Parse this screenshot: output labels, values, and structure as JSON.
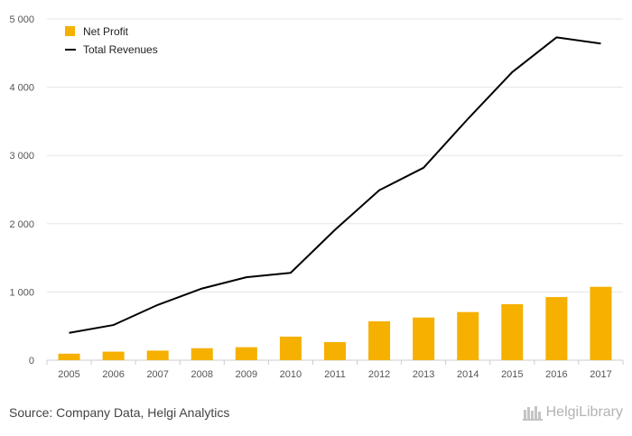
{
  "chart_data": {
    "type": "bar",
    "categories": [
      "2005",
      "2006",
      "2007",
      "2008",
      "2009",
      "2010",
      "2011",
      "2012",
      "2013",
      "2014",
      "2015",
      "2016",
      "2017"
    ],
    "series": [
      {
        "name": "Net Profit",
        "type": "bar",
        "color": "#f5b000",
        "values": [
          95,
          125,
          140,
          175,
          190,
          345,
          265,
          570,
          625,
          705,
          820,
          925,
          1075
        ]
      },
      {
        "name": "Total Revenues",
        "type": "line",
        "color": "#000000",
        "values": [
          400,
          515,
          810,
          1050,
          1215,
          1280,
          1910,
          2490,
          2820,
          3535,
          4220,
          4730,
          4640
        ]
      }
    ],
    "ylim": [
      0,
      5000
    ],
    "yticks": [
      0,
      1000,
      2000,
      3000,
      4000,
      5000
    ],
    "ytick_labels": [
      "0",
      "1 000",
      "2 000",
      "3 000",
      "4 000",
      "5 000"
    ],
    "grid": "horizontal",
    "legend_placement": "top-left"
  },
  "footer": {
    "source": "Source: Company Data, Helgi Analytics",
    "brand": "HelgiLibrary"
  }
}
